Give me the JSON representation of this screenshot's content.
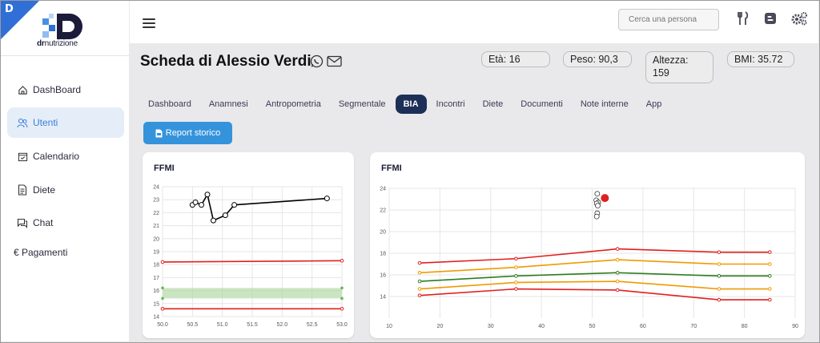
{
  "brand": {
    "logo_text_bold": "dr",
    "logo_text_rest": "nutrizione",
    "corner_letter": "D"
  },
  "sidebar": {
    "items": [
      {
        "label": "DashBoard",
        "icon": "home-icon"
      },
      {
        "label": "Utenti",
        "icon": "users-icon",
        "active": true
      },
      {
        "label": "Calendario",
        "icon": "calendar-icon"
      },
      {
        "label": "Diete",
        "icon": "document-icon"
      },
      {
        "label": "Chat",
        "icon": "chat-icon"
      },
      {
        "label": "€ Pagamenti",
        "icon": ""
      }
    ]
  },
  "topbar": {
    "search_placeholder": "Cerca una persona",
    "icons": [
      "menu-icon",
      "cutlery-icon",
      "blogger-icon",
      "settings-icon"
    ]
  },
  "patient": {
    "title": "Scheda di Alessio Verdi",
    "eta": "Età: 16",
    "peso": "Peso: 90,3",
    "altezza_line1": "Altezza:",
    "altezza_line2": "159",
    "bmi": "BMI: 35.72"
  },
  "tabs": [
    {
      "label": "Dashboard"
    },
    {
      "label": "Anamnesi"
    },
    {
      "label": "Antropometria"
    },
    {
      "label": "Segmentale"
    },
    {
      "label": "BIA",
      "active": true
    },
    {
      "label": "Incontri"
    },
    {
      "label": "Diete"
    },
    {
      "label": "Documenti"
    },
    {
      "label": "Note interne"
    },
    {
      "label": "App"
    }
  ],
  "report_button": "Report storico",
  "colors": {
    "accent": "#3593dc",
    "active_tab": "#1c2f57",
    "red": "#e02020",
    "orange": "#f09a00",
    "green": "#2e7d1e",
    "band": "#a8d49a"
  },
  "chart_data": [
    {
      "type": "line",
      "title": "FFMI",
      "xlim": [
        50.0,
        53.0
      ],
      "ylim": [
        14,
        24
      ],
      "x_ticks": [
        "50.0",
        "50.5",
        "51.0",
        "51.5",
        "52.0",
        "52.5",
        "53.0"
      ],
      "y_ticks": [
        "14",
        "15",
        "16",
        "17",
        "18",
        "19",
        "20",
        "21",
        "22",
        "23",
        "24"
      ],
      "grid": true,
      "series": [
        {
          "color": "#000000",
          "points": [
            [
              50.5,
              22.6
            ],
            [
              50.55,
              22.8
            ],
            [
              50.65,
              22.6
            ],
            [
              50.75,
              23.4
            ],
            [
              50.85,
              21.4
            ],
            [
              51.05,
              21.8
            ],
            [
              51.2,
              22.6
            ],
            [
              52.75,
              23.1
            ]
          ]
        },
        {
          "color": "#e02020",
          "points": [
            [
              50.0,
              18.2
            ],
            [
              53.0,
              18.3
            ]
          ]
        },
        {
          "color": "#e02020",
          "points": [
            [
              50.0,
              14.6
            ],
            [
              53.0,
              14.6
            ]
          ]
        }
      ],
      "band": {
        "color": "#a8d49a",
        "x": [
          50.0,
          53.0
        ],
        "y_low": 15.4,
        "y_high": 16.2
      }
    },
    {
      "type": "line",
      "title": "FFMI",
      "xlim": [
        10,
        90
      ],
      "ylim": [
        12,
        24
      ],
      "x_ticks": [
        "10",
        "20",
        "30",
        "40",
        "50",
        "60",
        "70",
        "80",
        "90"
      ],
      "y_ticks": [
        "14",
        "16",
        "18",
        "20",
        "22",
        "24"
      ],
      "grid": true,
      "series": [
        {
          "color": "#e02020",
          "points": [
            [
              16,
              17.1
            ],
            [
              35,
              17.5
            ],
            [
              55,
              18.4
            ],
            [
              75,
              18.1
            ],
            [
              85,
              18.1
            ]
          ]
        },
        {
          "color": "#f09a00",
          "points": [
            [
              16,
              16.2
            ],
            [
              35,
              16.7
            ],
            [
              55,
              17.4
            ],
            [
              75,
              17.0
            ],
            [
              85,
              17.0
            ]
          ]
        },
        {
          "color": "#2e7d1e",
          "points": [
            [
              16,
              15.4
            ],
            [
              35,
              15.9
            ],
            [
              55,
              16.2
            ],
            [
              75,
              15.9
            ],
            [
              85,
              15.9
            ]
          ]
        },
        {
          "color": "#f09a00",
          "points": [
            [
              16,
              14.7
            ],
            [
              35,
              15.3
            ],
            [
              55,
              15.4
            ],
            [
              75,
              14.7
            ],
            [
              85,
              14.7
            ]
          ]
        },
        {
          "color": "#e02020",
          "points": [
            [
              16,
              14.1
            ],
            [
              35,
              14.7
            ],
            [
              55,
              14.6
            ],
            [
              75,
              13.7
            ],
            [
              85,
              13.7
            ]
          ]
        }
      ],
      "scatter": [
        [
          51,
          23.5
        ],
        [
          50.8,
          22.9
        ],
        [
          51.2,
          22.7
        ],
        [
          50.9,
          22.6
        ],
        [
          51.1,
          22.4
        ],
        [
          51,
          21.7
        ],
        [
          50.9,
          21.4
        ]
      ],
      "highlight": {
        "x": 52.5,
        "y": 23.1,
        "color": "#e02020"
      }
    }
  ]
}
